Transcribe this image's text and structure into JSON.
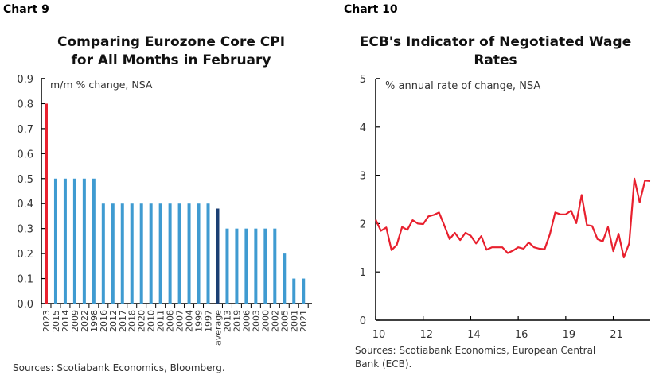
{
  "colors": {
    "highlight": "#e8202e",
    "bars": "#3f9bd1",
    "average": "#1b3f73",
    "line": "#e8202e",
    "axis": "#000000"
  },
  "chart_data": [
    {
      "label": "Chart 9",
      "type": "bar",
      "title": "Comparing Eurozone Core CPI for All Months in February",
      "title_lines": [
        "Comparing Eurozone Core CPI",
        "for All Months in February"
      ],
      "ylabel": "m/m % change, NSA",
      "ylim": [
        0,
        0.9
      ],
      "yticks": [
        "0.0",
        "0.1",
        "0.2",
        "0.3",
        "0.4",
        "0.5",
        "0.6",
        "0.7",
        "0.8",
        "0.9"
      ],
      "grid": false,
      "categories": [
        "2023",
        "2015",
        "2014",
        "2009",
        "2022",
        "1998",
        "2016",
        "2012",
        "2017",
        "2018",
        "2020",
        "2010",
        "2011",
        "2008",
        "2007",
        "2004",
        "1999",
        "1997",
        "average",
        "2013",
        "2019",
        "2006",
        "2003",
        "2000",
        "2002",
        "2005",
        "2001",
        "2021"
      ],
      "values": [
        0.8,
        0.5,
        0.5,
        0.5,
        0.5,
        0.5,
        0.4,
        0.4,
        0.4,
        0.4,
        0.4,
        0.4,
        0.4,
        0.4,
        0.4,
        0.4,
        0.4,
        0.4,
        0.38,
        0.3,
        0.3,
        0.3,
        0.3,
        0.3,
        0.3,
        0.2,
        0.1,
        0.1
      ],
      "source": "Sources: Scotiabank Economics, Bloomberg."
    },
    {
      "label": "Chart 10",
      "type": "line",
      "title": "ECB's Indicator of Negotiated Wage Rates",
      "title_lines": [
        "ECB's Indicator of Negotiated Wage",
        "Rates"
      ],
      "ylabel": "% annual rate of change, NSA",
      "ylim": [
        0,
        5
      ],
      "yticks": [
        "0",
        "1",
        "2",
        "3",
        "4",
        "5"
      ],
      "xticks": [
        "10",
        "12",
        "14",
        "16",
        "19",
        "21"
      ],
      "grid": false,
      "values": [
        2.08,
        1.85,
        1.92,
        1.45,
        1.56,
        1.93,
        1.87,
        2.07,
        2.0,
        1.99,
        2.15,
        2.18,
        2.23,
        1.96,
        1.68,
        1.81,
        1.66,
        1.81,
        1.75,
        1.59,
        1.74,
        1.46,
        1.51,
        1.51,
        1.51,
        1.39,
        1.44,
        1.51,
        1.48,
        1.61,
        1.51,
        1.48,
        1.47,
        1.78,
        2.23,
        2.19,
        2.19,
        2.27,
        2.01,
        2.59,
        1.97,
        1.95,
        1.68,
        1.63,
        1.93,
        1.43,
        1.79,
        1.3,
        1.59,
        2.93,
        2.44,
        2.89,
        2.88
      ],
      "source_lines": [
        "Sources: Scotiabank Economics, European Central",
        "Bank (ECB)."
      ]
    }
  ]
}
